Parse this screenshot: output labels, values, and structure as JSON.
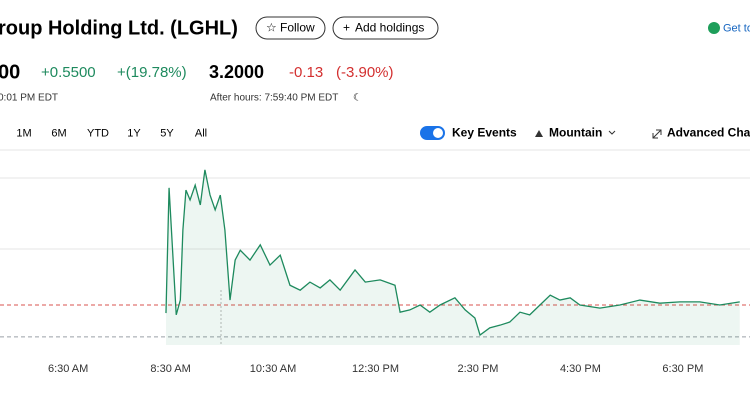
{
  "header": {
    "title": "roup Holding Ltd. (LGHL)",
    "follow": "Follow",
    "add_holdings": "Add holdings",
    "get": "Get to"
  },
  "quote": {
    "price": "00",
    "change": "+0.5500",
    "change_pct": "+(19.78%)",
    "time": "0:01 PM EDT",
    "after_price": "3.2000",
    "after_change": "-0.13",
    "after_change_pct": "(-3.90%)",
    "after_time": "After hours: 7:59:40 PM EDT"
  },
  "toolbar": {
    "ranges": [
      "1M",
      "6M",
      "YTD",
      "1Y",
      "5Y",
      "All"
    ],
    "key_events": "Key Events",
    "chart_type": "Mountain",
    "advanced": "Advanced Char"
  },
  "chart_data": {
    "type": "area",
    "color": "#1e8a5e",
    "x": [
      8.41,
      8.47,
      8.61,
      8.69,
      8.74,
      8.8,
      8.88,
      8.98,
      9.08,
      9.17,
      9.27,
      9.37,
      9.47,
      9.56,
      9.66,
      9.76,
      9.86,
      10.05,
      10.25,
      10.44,
      10.64,
      10.83,
      11.03,
      11.22,
      11.42,
      11.61,
      11.81,
      12.1,
      12.3,
      12.59,
      12.88,
      12.98,
      13.17,
      13.37,
      13.56,
      13.76,
      14.05,
      14.25,
      14.44,
      14.54,
      14.73,
      14.93,
      15.12,
      15.32,
      15.51,
      15.71,
      15.91,
      16.1,
      16.3,
      16.49,
      16.88,
      17.27,
      17.66,
      18.05,
      18.44,
      18.83,
      19.22,
      19.61
    ],
    "values": [
      2.6,
      5.39,
      2.56,
      2.89,
      4.45,
      5.34,
      5.12,
      5.45,
      5.01,
      5.79,
      5.23,
      4.9,
      5.23,
      4.45,
      2.89,
      3.78,
      4.0,
      3.78,
      4.12,
      3.67,
      3.89,
      3.22,
      3.11,
      3.29,
      3.16,
      3.34,
      3.11,
      3.56,
      3.29,
      3.34,
      3.22,
      2.62,
      2.67,
      2.78,
      2.62,
      2.78,
      2.94,
      2.67,
      2.49,
      2.11,
      2.27,
      2.33,
      2.4,
      2.62,
      2.56,
      2.78,
      3.0,
      2.89,
      2.94,
      2.78,
      2.71,
      2.78,
      2.89,
      2.82,
      2.85,
      2.85,
      2.78,
      2.85
    ],
    "xlim": [
      5.17,
      19.81
    ],
    "ylim": [
      2.0,
      6.3
    ],
    "xticks": [
      {
        "value": 6.5,
        "label": "6:30 AM"
      },
      {
        "value": 8.5,
        "label": "8:30 AM"
      },
      {
        "value": 10.5,
        "label": "10:30 AM"
      },
      {
        "value": 12.5,
        "label": "12:30 PM"
      },
      {
        "value": 14.5,
        "label": "2:30 PM"
      },
      {
        "value": 16.5,
        "label": "4:30 PM"
      },
      {
        "value": 18.5,
        "label": "6:30 PM"
      }
    ],
    "reference_lines": [
      {
        "value": 2.78,
        "color": "#d9534f"
      },
      {
        "value": 2.07,
        "color": "#9aa0a6"
      }
    ]
  }
}
